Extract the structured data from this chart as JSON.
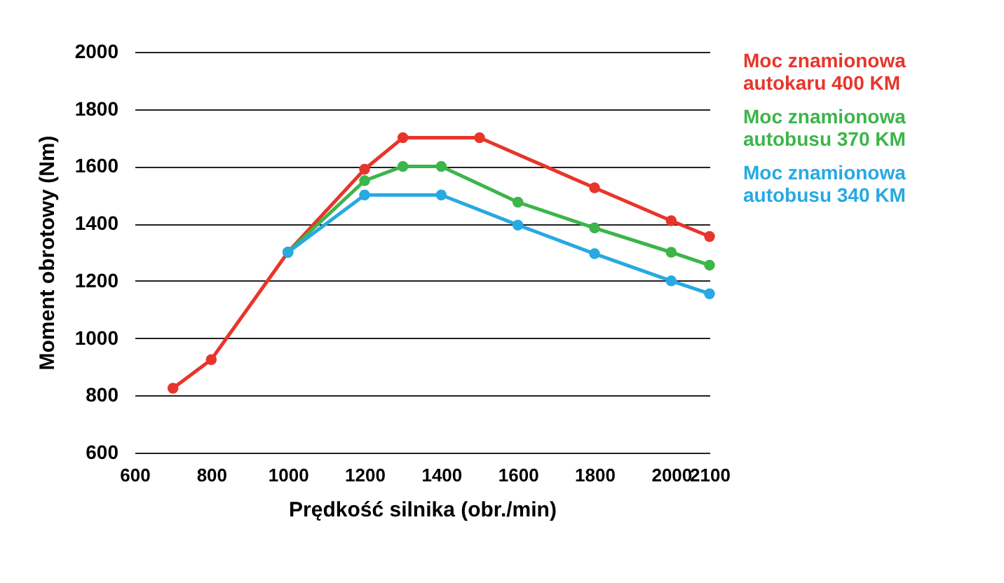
{
  "chart_data": {
    "type": "line",
    "xlabel": "Prędkość silnika (obr./min)",
    "ylabel": "Moment obrotowy (Nm)",
    "xlim": [
      600,
      2100
    ],
    "xticks": [
      600,
      800,
      1000,
      1200,
      1400,
      1600,
      1800,
      2000,
      2100
    ],
    "ylim": [
      600,
      2000
    ],
    "yticks": [
      600,
      800,
      1000,
      1200,
      1400,
      1600,
      1800,
      2000
    ],
    "grid": "y",
    "legend": "right",
    "marker": "circle",
    "line_style": "solid",
    "series": [
      {
        "name": "Moc znamionowa\nautokaru 400 KM",
        "color": "#e8352b",
        "x": [
          700,
          800,
          1000,
          1200,
          1300,
          1500,
          1800,
          2000,
          2100
        ],
        "values": [
          825,
          925,
          1300,
          1590,
          1700,
          1700,
          1525,
          1410,
          1355
        ]
      },
      {
        "name": "Moc znamionowa\nautobusu 370 KM",
        "color": "#3cb54a",
        "x": [
          1000,
          1200,
          1300,
          1400,
          1600,
          1800,
          2000,
          2100
        ],
        "values": [
          1300,
          1550,
          1600,
          1600,
          1475,
          1385,
          1300,
          1255
        ]
      },
      {
        "name": "Moc znamionowa\nautobusu 340 KM",
        "color": "#27a9e1",
        "x": [
          1000,
          1200,
          1400,
          1600,
          1800,
          2000,
          2100
        ],
        "values": [
          1300,
          1500,
          1500,
          1395,
          1295,
          1200,
          1155
        ]
      }
    ]
  }
}
